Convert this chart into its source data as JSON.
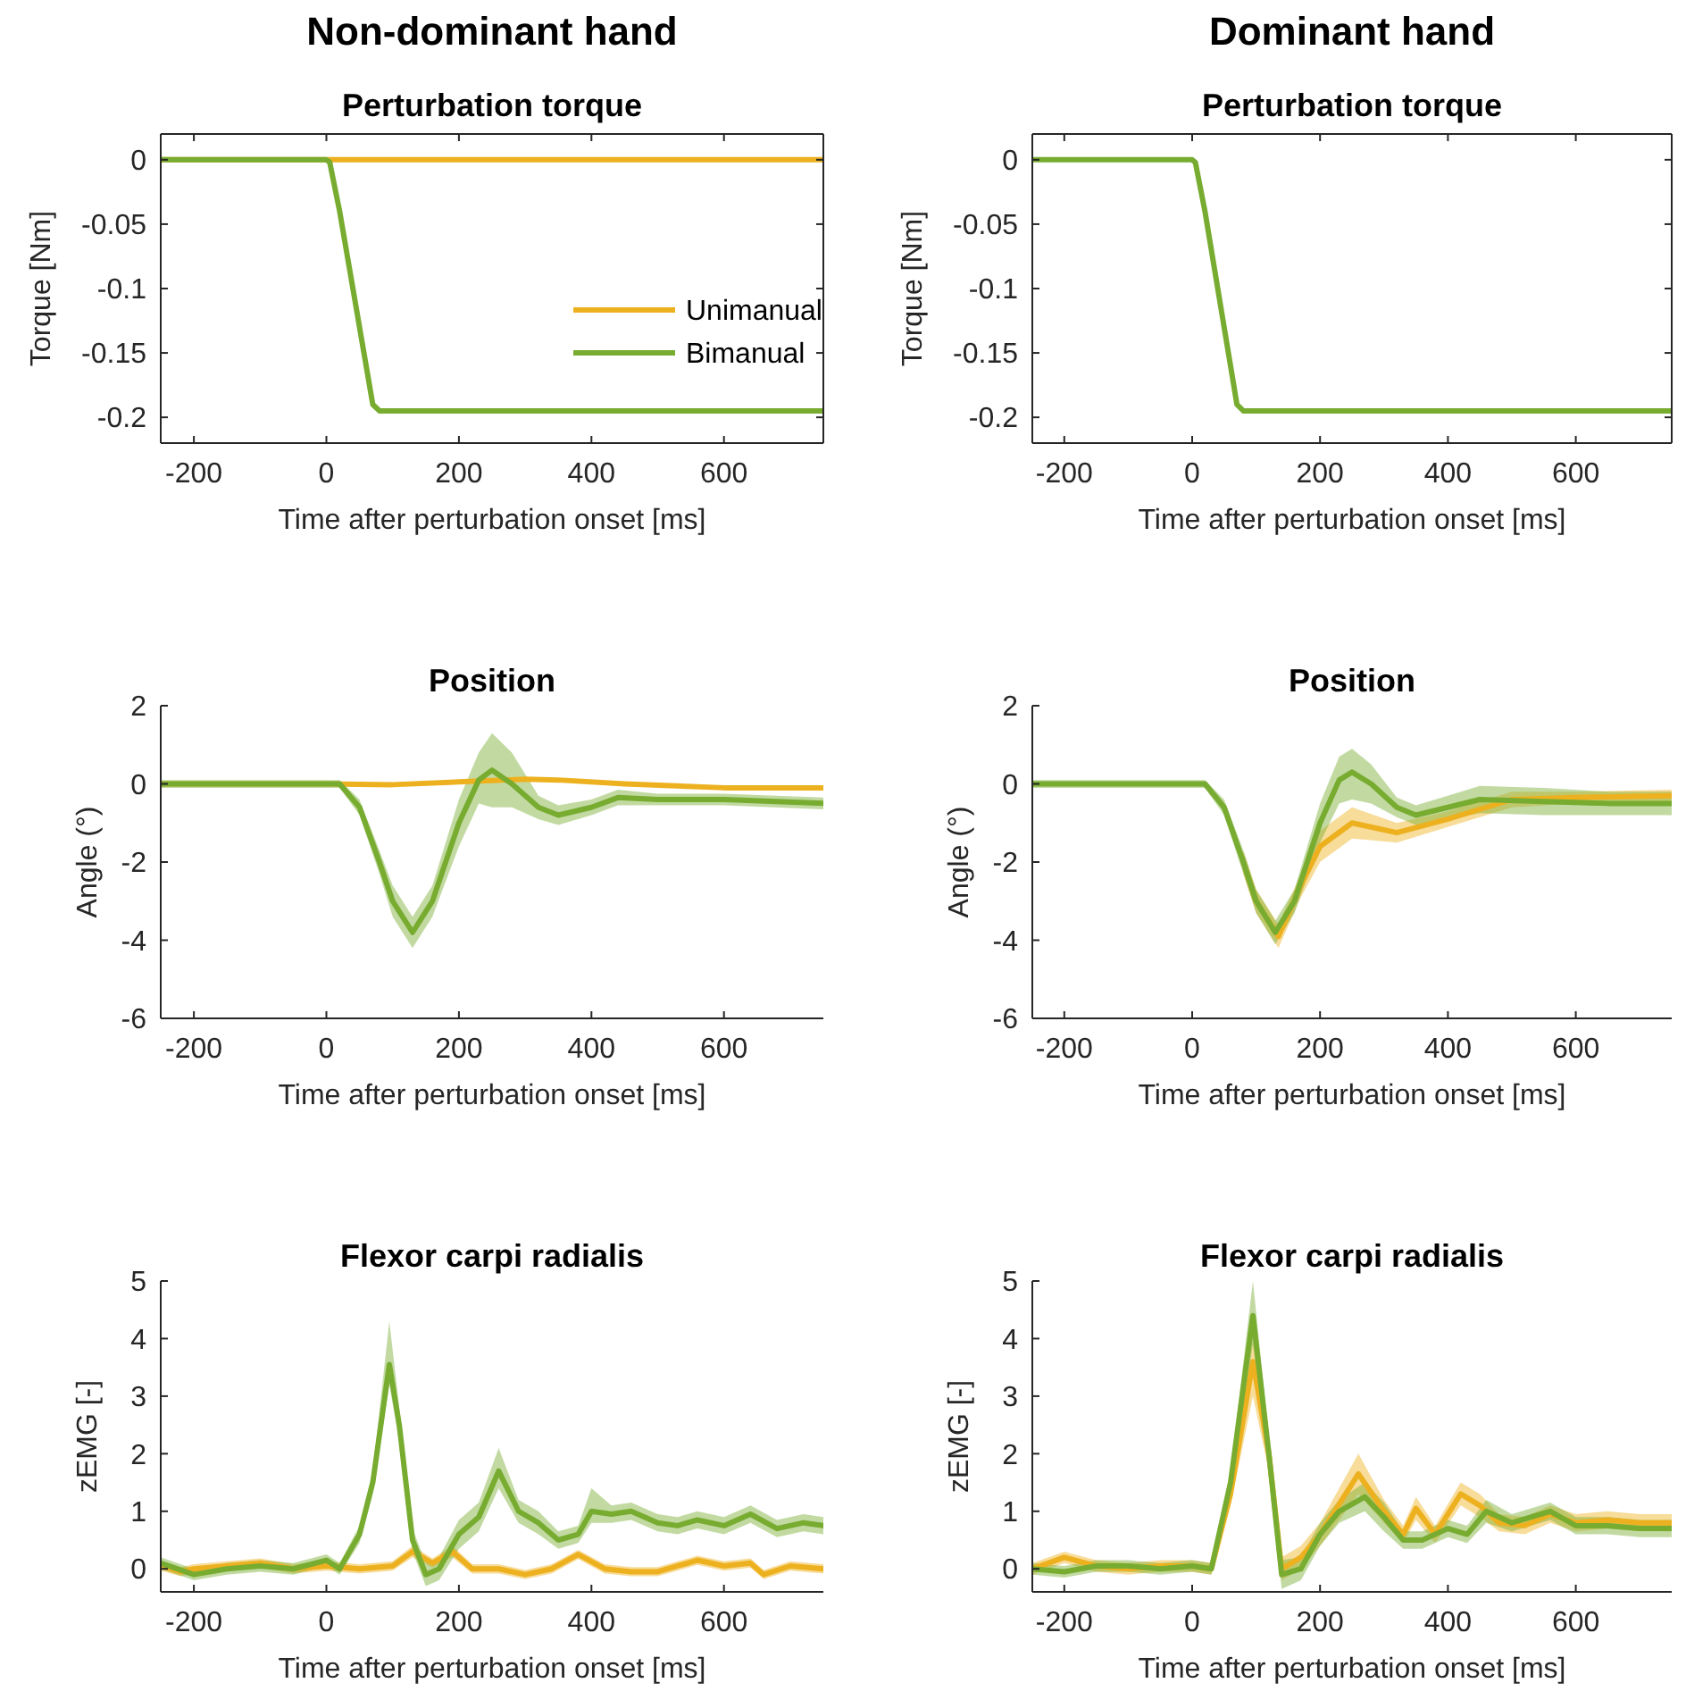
{
  "chart_data": [
    {
      "type": "line",
      "title": "Non-dominant hand",
      "subtitle": "Perturbation torque",
      "xlabel": "Time after perturbation onset [ms]",
      "ylabel": "Torque [Nm]",
      "xlim": [
        -250,
        750
      ],
      "ylim": [
        -0.22,
        0.02
      ],
      "xticks": [
        -200,
        0,
        200,
        400,
        600
      ],
      "yticks": [
        -0.2,
        -0.15,
        -0.1,
        -0.05,
        0
      ],
      "legend": "right",
      "line_style": "solid",
      "series": [
        {
          "name": "Unimanual",
          "color": "#edb120",
          "x": [
            -250,
            0,
            250,
            500,
            750
          ],
          "values": [
            0,
            0,
            0,
            0,
            0
          ]
        },
        {
          "name": "Bimanual",
          "color": "#77ac30",
          "x": [
            -250,
            0,
            5,
            20,
            40,
            60,
            70,
            80,
            750
          ],
          "values": [
            0,
            0,
            -0.002,
            -0.04,
            -0.1,
            -0.16,
            -0.19,
            -0.195,
            -0.195
          ]
        }
      ]
    },
    {
      "type": "line",
      "title": "Dominant hand",
      "subtitle": "Perturbation torque",
      "xlabel": "Time after perturbation onset [ms]",
      "ylabel": "Torque [Nm]",
      "xlim": [
        -250,
        750
      ],
      "ylim": [
        -0.22,
        0.02
      ],
      "xticks": [
        -200,
        0,
        200,
        400,
        600
      ],
      "yticks": [
        -0.2,
        -0.15,
        -0.1,
        -0.05,
        0
      ],
      "line_style": "solid",
      "series": [
        {
          "color": "#77ac30",
          "x": [
            -250,
            0,
            5,
            20,
            40,
            60,
            70,
            80,
            750
          ],
          "values": [
            0,
            0,
            -0.002,
            -0.04,
            -0.1,
            -0.16,
            -0.19,
            -0.195,
            -0.195
          ]
        }
      ]
    },
    {
      "type": "line",
      "title": "Position",
      "xlabel": "Time after perturbation onset [ms]",
      "ylabel": "Angle (°)",
      "xlim": [
        -250,
        750
      ],
      "ylim": [
        -6,
        2
      ],
      "xticks": [
        -200,
        0,
        200,
        400,
        600
      ],
      "yticks": [
        -6,
        -4,
        -2,
        0,
        2
      ],
      "line_style": "solid",
      "series": [
        {
          "color": "#edb120",
          "x": [
            -250,
            0,
            100,
            200,
            300,
            350,
            450,
            600,
            750
          ],
          "values": [
            0,
            0,
            -0.02,
            0.05,
            0.12,
            0.1,
            0,
            -0.1,
            -0.1
          ]
        },
        {
          "color": "#77ac30",
          "x": [
            -250,
            0,
            20,
            50,
            80,
            100,
            130,
            160,
            200,
            230,
            250,
            280,
            320,
            350,
            400,
            440,
            500,
            600,
            750
          ],
          "values": [
            0,
            0,
            0,
            -0.6,
            -2,
            -3,
            -3.8,
            -3,
            -1,
            0.1,
            0.35,
            0,
            -0.6,
            -0.8,
            -0.6,
            -0.35,
            -0.4,
            -0.4,
            -0.5
          ],
          "lower": [
            -0.1,
            -0.1,
            -0.1,
            -0.8,
            -2.3,
            -3.4,
            -4.2,
            -3.4,
            -1.6,
            -0.5,
            -0.6,
            -0.6,
            -0.9,
            -1.05,
            -0.8,
            -0.55,
            -0.55,
            -0.55,
            -0.65
          ],
          "upper": [
            0.1,
            0.1,
            0.1,
            -0.4,
            -1.7,
            -2.6,
            -3.4,
            -2.6,
            -0.4,
            0.8,
            1.3,
            0.8,
            -0.3,
            -0.55,
            -0.4,
            -0.15,
            -0.25,
            -0.25,
            -0.35
          ]
        }
      ]
    },
    {
      "type": "line",
      "title": "Position",
      "xlabel": "Time after perturbation onset [ms]",
      "ylabel": "Angle (°)",
      "xlim": [
        -250,
        750
      ],
      "ylim": [
        -6,
        2
      ],
      "xticks": [
        -200,
        0,
        200,
        400,
        600
      ],
      "yticks": [
        -6,
        -4,
        -2,
        0,
        2
      ],
      "line_style": "solid",
      "series": [
        {
          "color": "#edb120",
          "x": [
            80,
            100,
            135,
            170,
            200,
            250,
            320,
            400,
            500,
            600,
            750
          ],
          "values": [
            -2,
            -3,
            -3.9,
            -2.6,
            -1.6,
            -1,
            -1.25,
            -0.9,
            -0.4,
            -0.35,
            -0.3
          ],
          "lower": [
            -2.3,
            -3.3,
            -4.2,
            -2.9,
            -2,
            -1.4,
            -1.5,
            -1.1,
            -0.6,
            -0.5,
            -0.45
          ],
          "upper": [
            -1.7,
            -2.7,
            -3.6,
            -2.3,
            -1.2,
            -0.6,
            -1,
            -0.7,
            -0.2,
            -0.2,
            -0.15
          ]
        },
        {
          "color": "#77ac30",
          "x": [
            -250,
            0,
            20,
            50,
            80,
            100,
            130,
            160,
            200,
            230,
            250,
            280,
            320,
            350,
            400,
            450,
            550,
            650,
            750
          ],
          "values": [
            0,
            0,
            0,
            -0.6,
            -2,
            -3,
            -3.8,
            -3,
            -1,
            0.1,
            0.3,
            0,
            -0.6,
            -0.8,
            -0.6,
            -0.4,
            -0.45,
            -0.5,
            -0.5
          ],
          "lower": [
            -0.1,
            -0.1,
            -0.1,
            -0.8,
            -2.3,
            -3.3,
            -4.1,
            -3.3,
            -1.5,
            -0.5,
            -0.4,
            -0.5,
            -0.85,
            -1.05,
            -0.9,
            -0.75,
            -0.8,
            -0.8,
            -0.8
          ],
          "upper": [
            0.1,
            0.1,
            0.1,
            -0.4,
            -1.7,
            -2.7,
            -3.5,
            -2.7,
            -0.5,
            0.7,
            0.9,
            0.5,
            -0.35,
            -0.55,
            -0.3,
            -0.05,
            -0.1,
            -0.2,
            -0.2
          ]
        }
      ]
    },
    {
      "type": "line",
      "title": "Flexor carpi radialis",
      "xlabel": "Time after perturbation onset [ms]",
      "ylabel": "zEMG [-]",
      "xlim": [
        -250,
        750
      ],
      "ylim": [
        -0.4,
        5
      ],
      "xticks": [
        -200,
        0,
        200,
        400,
        600
      ],
      "yticks": [
        0,
        1,
        2,
        3,
        4,
        5
      ],
      "line_style": "solid",
      "series": [
        {
          "color": "#edb120",
          "x": [
            -250,
            -220,
            -200,
            -150,
            -100,
            -50,
            0,
            50,
            100,
            130,
            160,
            190,
            220,
            260,
            300,
            340,
            380,
            420,
            460,
            500,
            560,
            600,
            640,
            660,
            700,
            750
          ],
          "values": [
            0.05,
            -0.05,
            0,
            0.05,
            0.1,
            0,
            0.05,
            0,
            0.05,
            0.3,
            0.1,
            0.3,
            0,
            0,
            -0.1,
            0,
            0.25,
            0,
            -0.05,
            -0.05,
            0.15,
            0.05,
            0.1,
            -0.1,
            0.05,
            0
          ],
          "lower": [
            -0.03,
            -0.13,
            -0.08,
            -0.03,
            0.02,
            -0.08,
            -0.03,
            -0.08,
            -0.03,
            0.2,
            0.02,
            0.2,
            -0.08,
            -0.08,
            -0.18,
            -0.08,
            0.17,
            -0.08,
            -0.13,
            -0.13,
            0.07,
            -0.03,
            0.02,
            -0.18,
            -0.03,
            -0.08
          ],
          "upper": [
            0.13,
            0.03,
            0.08,
            0.13,
            0.18,
            0.08,
            0.13,
            0.08,
            0.13,
            0.4,
            0.18,
            0.4,
            0.08,
            0.08,
            -0.02,
            0.08,
            0.33,
            0.08,
            0.03,
            0.03,
            0.23,
            0.13,
            0.18,
            -0.02,
            0.13,
            0.08
          ]
        },
        {
          "color": "#77ac30",
          "x": [
            -250,
            -200,
            -150,
            -100,
            -50,
            0,
            20,
            50,
            70,
            95,
            110,
            130,
            150,
            170,
            200,
            230,
            260,
            290,
            320,
            350,
            380,
            400,
            430,
            460,
            500,
            530,
            560,
            600,
            640,
            680,
            720,
            750
          ],
          "values": [
            0.1,
            -0.1,
            0,
            0.05,
            0,
            0.15,
            0,
            0.6,
            1.5,
            3.55,
            2.5,
            0.5,
            -0.1,
            0,
            0.6,
            0.9,
            1.7,
            1,
            0.8,
            0.5,
            0.6,
            1,
            0.95,
            1,
            0.8,
            0.75,
            0.85,
            0.75,
            0.95,
            0.7,
            0.8,
            0.75
          ],
          "lower": [
            0,
            -0.2,
            -0.1,
            -0.05,
            -0.1,
            0.05,
            -0.1,
            0.45,
            1.3,
            3.2,
            2.2,
            0.3,
            -0.3,
            -0.2,
            0.35,
            0.65,
            1.4,
            0.8,
            0.6,
            0.35,
            0.45,
            0.8,
            0.8,
            0.85,
            0.65,
            0.6,
            0.7,
            0.6,
            0.8,
            0.55,
            0.65,
            0.6
          ],
          "upper": [
            0.2,
            0,
            0.1,
            0.15,
            0.1,
            0.25,
            0.1,
            0.75,
            1.7,
            4.3,
            2.8,
            0.7,
            0.1,
            0.2,
            0.85,
            1.15,
            2.1,
            1.2,
            1,
            0.65,
            0.75,
            1.4,
            1.1,
            1.15,
            0.95,
            0.9,
            1,
            0.9,
            1.1,
            0.85,
            0.95,
            0.9
          ]
        }
      ]
    },
    {
      "type": "line",
      "title": "Flexor carpi radialis",
      "xlabel": "Time after perturbation onset [ms]",
      "ylabel": "zEMG [-]",
      "xlim": [
        -250,
        750
      ],
      "ylim": [
        -0.4,
        5
      ],
      "xticks": [
        -200,
        0,
        200,
        400,
        600
      ],
      "yticks": [
        0,
        1,
        2,
        3,
        4,
        5
      ],
      "line_style": "solid",
      "series": [
        {
          "color": "#edb120",
          "x": [
            -250,
            -200,
            -150,
            -100,
            -50,
            0,
            30,
            60,
            95,
            120,
            140,
            170,
            200,
            260,
            300,
            330,
            350,
            380,
            420,
            450,
            480,
            520,
            560,
            600,
            650,
            700,
            750
          ],
          "values": [
            0,
            0.2,
            0.05,
            0,
            0.05,
            0.05,
            0,
            1.3,
            3.6,
            2,
            0,
            0.2,
            0.6,
            1.65,
            1,
            0.6,
            1.05,
            0.6,
            1.3,
            1.1,
            0.8,
            0.75,
            0.95,
            0.8,
            0.85,
            0.8,
            0.8
          ],
          "lower": [
            -0.1,
            0.1,
            -0.05,
            -0.1,
            -0.05,
            -0.05,
            -0.1,
            1.1,
            3,
            1.7,
            -0.2,
            0,
            0.4,
            1.3,
            0.8,
            0.45,
            0.85,
            0.45,
            1.1,
            0.9,
            0.65,
            0.6,
            0.8,
            0.65,
            0.7,
            0.65,
            0.65
          ],
          "upper": [
            0.1,
            0.3,
            0.15,
            0.1,
            0.15,
            0.15,
            0.1,
            1.5,
            4,
            2.3,
            0.2,
            0.4,
            0.8,
            2,
            1.2,
            0.75,
            1.25,
            0.75,
            1.5,
            1.3,
            0.95,
            0.9,
            1.1,
            0.95,
            1,
            0.95,
            0.95
          ]
        },
        {
          "color": "#77ac30",
          "x": [
            -250,
            -200,
            -150,
            -100,
            -50,
            0,
            30,
            60,
            95,
            120,
            140,
            170,
            200,
            230,
            270,
            300,
            330,
            360,
            400,
            430,
            460,
            500,
            560,
            600,
            650,
            700,
            750
          ],
          "values": [
            0,
            -0.05,
            0.05,
            0.05,
            0,
            0.05,
            0,
            1.5,
            4.4,
            2,
            -0.1,
            0,
            0.6,
            1,
            1.25,
            0.9,
            0.5,
            0.5,
            0.7,
            0.6,
            1,
            0.8,
            1,
            0.75,
            0.75,
            0.7,
            0.7
          ],
          "lower": [
            -0.1,
            -0.15,
            -0.05,
            -0.05,
            -0.1,
            -0.05,
            -0.1,
            1.3,
            3.9,
            1.7,
            -0.35,
            -0.2,
            0.4,
            0.8,
            1,
            0.65,
            0.35,
            0.35,
            0.55,
            0.45,
            0.8,
            0.65,
            0.85,
            0.6,
            0.6,
            0.55,
            0.55
          ],
          "upper": [
            0.1,
            0.05,
            0.15,
            0.15,
            0.1,
            0.15,
            0.1,
            1.7,
            5,
            2.3,
            0.15,
            0.2,
            0.8,
            1.2,
            1.5,
            1.15,
            0.65,
            0.65,
            0.85,
            0.75,
            1.2,
            0.95,
            1.15,
            0.9,
            0.9,
            0.85,
            0.85
          ]
        }
      ]
    }
  ]
}
